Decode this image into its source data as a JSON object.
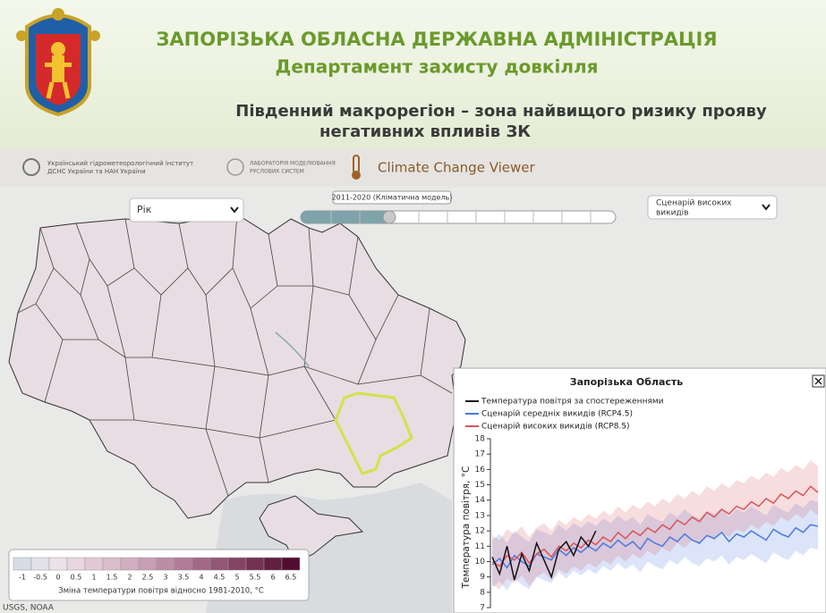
{
  "header": {
    "title": "ЗАПОРІЗЬКА ОБЛАСНА ДЕРЖАВНА АДМІНІСТРАЦІЯ",
    "subtitle": "Департамент захисту довкілля",
    "heading_line1": "Південний макрорегіон – зона найвищого ризику прояву",
    "heading_line2": "негативних впливів ЗК"
  },
  "toolbar": {
    "org1_line1": "Український гідрометеорологічний інститут",
    "org1_line2": "ДСНС України та НАН України",
    "org2_line1": "ЛАБОРАТОРІЯ МОДЕЛЮВАННЯ",
    "org2_line2": "РУСЛОВИХ СИСТЕМ",
    "app_title": "Climate Change Viewer"
  },
  "controls": {
    "period_select": "Рік",
    "slider_label": "2011-2020 (Кліматична модель)",
    "scenario_select_line1": "Сценарій високих",
    "scenario_select_line2": "викидів"
  },
  "map": {
    "attribution": "USGS, NOAA",
    "colorbar": {
      "title": "Зміна температури повітря відносно 1981-2010, °C",
      "ticks": [
        -1,
        -0.5,
        0,
        0.5,
        1,
        1.5,
        2,
        2.5,
        3,
        3.5,
        4,
        4.5,
        5,
        5.5,
        6,
        6.5
      ],
      "colors": [
        "#d5dce6",
        "#e2e1e9",
        "#ebe2e8",
        "#e8d6df",
        "#e2cad5",
        "#dabdcb",
        "#d1aec0",
        "#c79eb3",
        "#bc8da5",
        "#b07b96",
        "#a36886",
        "#945676",
        "#844365",
        "#733154",
        "#621f42",
        "#520c30"
      ]
    }
  },
  "chart_data": {
    "type": "line",
    "title": "Запорізька Область",
    "y_label": "Температура повітря, °C",
    "ylim": [
      7,
      18
    ],
    "yticks": [
      7,
      8,
      9,
      10,
      11,
      12,
      13,
      14,
      15,
      16,
      17,
      18
    ],
    "series": [
      {
        "name": "Температура повітря за спостереженнями",
        "color": "#111111",
        "values": [
          10.3,
          9.2,
          11.0,
          8.8,
          10.5,
          9.4,
          11.2,
          10.1,
          9.0,
          10.8,
          11.3,
          10.4,
          11.6,
          11.0,
          12.0,
          null,
          null,
          null,
          null,
          null,
          null,
          null,
          null,
          null,
          null,
          null,
          null,
          null,
          null,
          null,
          null,
          null,
          null,
          null,
          null,
          null,
          null,
          null,
          null,
          null,
          null,
          null,
          null,
          null,
          null
        ]
      },
      {
        "name": "Сценарій середніх викидів (RCP4.5)",
        "color": "#4a78e0",
        "values": [
          9.8,
          10.2,
          9.6,
          10.4,
          10.0,
          9.7,
          10.5,
          10.3,
          10.1,
          10.8,
          10.4,
          10.9,
          10.6,
          11.0,
          10.7,
          11.2,
          10.9,
          11.4,
          11.0,
          11.3,
          10.8,
          11.5,
          11.2,
          11.0,
          11.6,
          11.3,
          11.8,
          11.4,
          11.2,
          11.7,
          11.5,
          11.9,
          11.3,
          11.8,
          11.6,
          12.0,
          11.7,
          11.4,
          12.1,
          11.8,
          11.6,
          12.2,
          11.9,
          12.4,
          12.3
        ],
        "lower": [
          8.3,
          8.7,
          8.1,
          8.9,
          8.5,
          8.2,
          9.0,
          8.8,
          8.6,
          9.3,
          8.9,
          9.4,
          9.1,
          9.5,
          9.2,
          9.7,
          9.4,
          9.9,
          9.5,
          9.8,
          9.3,
          10.0,
          9.7,
          9.5,
          10.1,
          9.8,
          10.3,
          9.9,
          9.7,
          10.2,
          10.0,
          10.4,
          9.8,
          10.3,
          10.1,
          10.5,
          10.2,
          9.9,
          10.6,
          10.3,
          10.1,
          10.7,
          10.4,
          10.9,
          10.8
        ],
        "upper": [
          11.4,
          11.8,
          11.2,
          12.0,
          11.6,
          11.3,
          12.1,
          11.9,
          11.7,
          12.4,
          12.0,
          12.5,
          12.2,
          12.6,
          12.3,
          12.8,
          12.5,
          13.0,
          12.6,
          12.9,
          12.4,
          13.1,
          12.8,
          12.6,
          13.2,
          12.9,
          13.4,
          13.0,
          12.8,
          13.3,
          13.1,
          13.5,
          12.9,
          13.4,
          13.2,
          13.6,
          13.3,
          13.0,
          13.7,
          13.4,
          13.2,
          13.8,
          13.5,
          14.0,
          13.9
        ]
      },
      {
        "name": "Сценарій високих викидів (RCP8.5)",
        "color": "#d9545a",
        "values": [
          10.0,
          9.7,
          10.4,
          10.1,
          10.6,
          9.9,
          10.5,
          10.8,
          10.3,
          11.0,
          10.7,
          11.2,
          10.9,
          11.4,
          11.1,
          11.6,
          11.3,
          11.9,
          11.5,
          12.0,
          11.7,
          12.2,
          11.9,
          12.4,
          12.1,
          12.7,
          12.4,
          12.9,
          12.6,
          13.2,
          12.9,
          13.4,
          13.1,
          13.6,
          13.4,
          13.9,
          13.6,
          14.1,
          13.8,
          14.4,
          14.1,
          14.6,
          14.3,
          14.9,
          14.5
        ],
        "lower": [
          8.5,
          8.2,
          8.9,
          8.6,
          9.1,
          8.4,
          9.0,
          9.3,
          8.8,
          9.5,
          9.2,
          9.7,
          9.4,
          9.9,
          9.6,
          10.1,
          9.8,
          10.4,
          10.0,
          10.5,
          10.2,
          10.7,
          10.4,
          10.9,
          10.6,
          11.2,
          10.9,
          11.4,
          11.1,
          11.7,
          11.4,
          11.9,
          11.6,
          12.1,
          11.9,
          12.4,
          12.1,
          12.6,
          12.3,
          12.9,
          12.6,
          13.1,
          12.8,
          13.4,
          13.0
        ],
        "upper": [
          11.7,
          11.4,
          12.1,
          11.8,
          12.3,
          11.6,
          12.2,
          12.5,
          12.0,
          12.7,
          12.4,
          12.9,
          12.6,
          13.1,
          12.8,
          13.3,
          13.0,
          13.6,
          13.2,
          13.7,
          13.4,
          13.9,
          13.6,
          14.1,
          13.8,
          14.4,
          14.1,
          14.6,
          14.3,
          14.9,
          14.6,
          15.1,
          14.8,
          15.3,
          15.1,
          15.6,
          15.3,
          15.8,
          15.5,
          16.1,
          15.8,
          16.3,
          16.0,
          16.6,
          16.2
        ]
      }
    ]
  }
}
